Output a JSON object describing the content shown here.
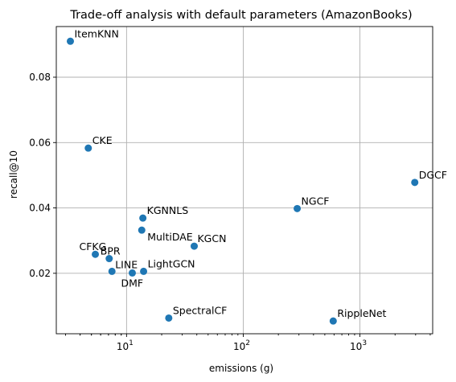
{
  "chart_data": {
    "type": "scatter",
    "title": "Trade-off analysis with default parameters (AmazonBooks)",
    "xlabel": "emissions (g)",
    "ylabel": "recall@10",
    "xscale": "log",
    "xlim": [
      2.5,
      4200
    ],
    "ylim": [
      0.0015,
      0.0955
    ],
    "grid": true,
    "marker_color": "#1f77b4",
    "x_ticks": [
      {
        "value": 10,
        "base": "10",
        "exp": "1"
      },
      {
        "value": 100,
        "base": "10",
        "exp": "2"
      },
      {
        "value": 1000,
        "base": "10",
        "exp": "3"
      }
    ],
    "y_ticks": [
      {
        "value": 0.02,
        "label": "0.02"
      },
      {
        "value": 0.04,
        "label": "0.04"
      },
      {
        "value": 0.06,
        "label": "0.06"
      },
      {
        "value": 0.08,
        "label": "0.08"
      }
    ],
    "points": [
      {
        "label": "ItemKNN",
        "x": 3.3,
        "y": 0.091
      },
      {
        "label": "CKE",
        "x": 4.7,
        "y": 0.0583
      },
      {
        "label": "DGCF",
        "x": 2950,
        "y": 0.0478
      },
      {
        "label": "NGCF",
        "x": 290,
        "y": 0.0398
      },
      {
        "label": "KGNNLS",
        "x": 13.8,
        "y": 0.0369
      },
      {
        "label": "MultiDAE",
        "x": 13.5,
        "y": 0.0332
      },
      {
        "label": "KGCN",
        "x": 38,
        "y": 0.0283
      },
      {
        "label": "CFKG",
        "x": 5.4,
        "y": 0.0258
      },
      {
        "label": "BPR",
        "x": 7.1,
        "y": 0.0245
      },
      {
        "label": "LINE",
        "x": 7.5,
        "y": 0.0206
      },
      {
        "label": "DMF",
        "x": 11.2,
        "y": 0.0201
      },
      {
        "label": "LightGCN",
        "x": 14.0,
        "y": 0.0206
      },
      {
        "label": "SpectralCF",
        "x": 23,
        "y": 0.0063
      },
      {
        "label": "RippleNet",
        "x": 590,
        "y": 0.0054
      }
    ]
  }
}
